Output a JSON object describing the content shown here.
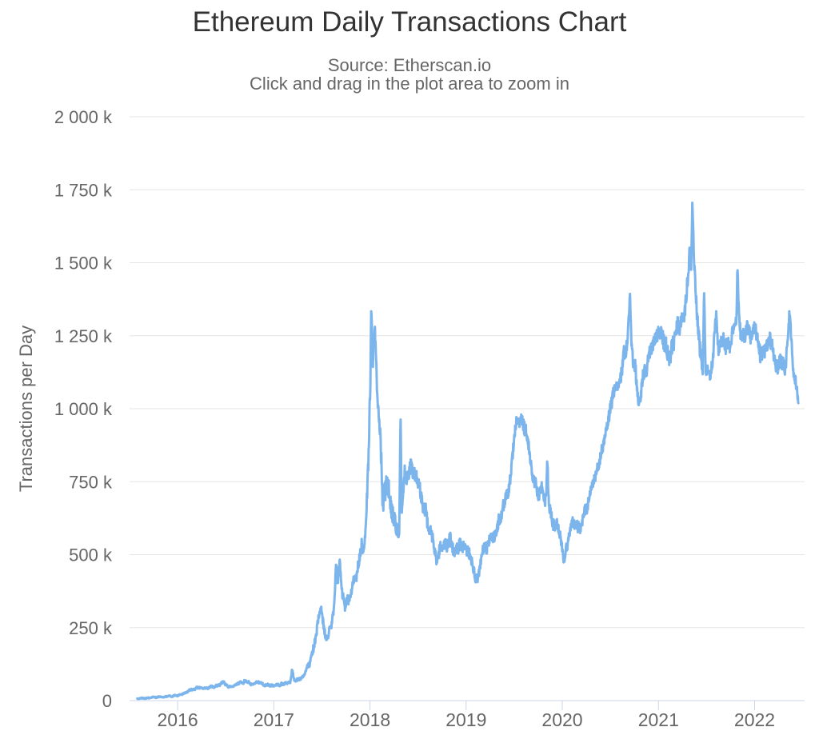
{
  "chart": {
    "title": "Ethereum Daily Transactions Chart",
    "subtitle_line1": "Source: Etherscan.io",
    "subtitle_line2": "Click and drag in the plot area to zoom in"
  },
  "style": {
    "line_color": "#7cb5ec",
    "grid_color": "#e6e6e6",
    "axis_color": "#ccd6eb",
    "title_color": "#333333",
    "label_color": "#666666",
    "background": "#ffffff"
  },
  "chart_data": {
    "type": "line",
    "title": "Ethereum Daily Transactions Chart",
    "subtitle": "Source: Etherscan.io — Click and drag in the plot area to zoom in",
    "xlabel": "",
    "ylabel": "Transactions per Day",
    "x_unit": "calendar year (decimal)",
    "y_unit": "thousand transactions per day",
    "xlim": [
      2015.5,
      2022.52
    ],
    "ylim": [
      0,
      2000
    ],
    "grid": "horizontal",
    "legend_position": "none",
    "x_ticks": [
      {
        "value": 2016,
        "label": "2016"
      },
      {
        "value": 2017,
        "label": "2017"
      },
      {
        "value": 2018,
        "label": "2018"
      },
      {
        "value": 2019,
        "label": "2019"
      },
      {
        "value": 2020,
        "label": "2020"
      },
      {
        "value": 2021,
        "label": "2021"
      },
      {
        "value": 2022,
        "label": "2022"
      }
    ],
    "y_ticks": [
      {
        "value": 0,
        "label": "0"
      },
      {
        "value": 250,
        "label": "250 k"
      },
      {
        "value": 500,
        "label": "500 k"
      },
      {
        "value": 750,
        "label": "750 k"
      },
      {
        "value": 1000,
        "label": "1 000 k"
      },
      {
        "value": 1250,
        "label": "1 250 k"
      },
      {
        "value": 1500,
        "label": "1 500 k"
      },
      {
        "value": 1750,
        "label": "1 750 k"
      },
      {
        "value": 2000,
        "label": "2 000 k"
      }
    ],
    "reconstruction": {
      "seed": 42,
      "sample_step_years": 0.003,
      "wander_step_years": 0.02,
      "wander_weight": 0.5,
      "jitter_weight": 0.5
    },
    "series": [
      {
        "name": "Transactions per Day",
        "color": "#7cb5ec",
        "points_note": "Anchor points [decimal_year, value_thousands, daily_noise_thousands] tracing the noisy daily series; notable extremes: ~1342k Jan 2018, ~988k Apr 2018, ~408k early 2019, ~1398k Sep 2020, ~1712k May 2021, ~1498k late 2021, ~1328k May 2022, ends ~1018k mid-2022",
        "anchors": [
          [
            2015.58,
            6,
            3
          ],
          [
            2015.7,
            10,
            4
          ],
          [
            2015.85,
            13,
            4
          ],
          [
            2016.0,
            18,
            5
          ],
          [
            2016.08,
            28,
            6
          ],
          [
            2016.17,
            42,
            7
          ],
          [
            2016.28,
            44,
            7
          ],
          [
            2016.4,
            50,
            8
          ],
          [
            2016.47,
            61,
            9
          ],
          [
            2016.53,
            49,
            8
          ],
          [
            2016.6,
            53,
            8
          ],
          [
            2016.7,
            66,
            9
          ],
          [
            2016.76,
            58,
            8
          ],
          [
            2016.83,
            65,
            8
          ],
          [
            2016.9,
            52,
            7
          ],
          [
            2017.0,
            52,
            7
          ],
          [
            2017.1,
            55,
            8
          ],
          [
            2017.17,
            62,
            9
          ],
          [
            2017.19,
            105,
            12
          ],
          [
            2017.215,
            66,
            9
          ],
          [
            2017.3,
            80,
            11
          ],
          [
            2017.37,
            120,
            18
          ],
          [
            2017.42,
            195,
            30
          ],
          [
            2017.455,
            265,
            35
          ],
          [
            2017.49,
            318,
            28
          ],
          [
            2017.52,
            240,
            28
          ],
          [
            2017.555,
            212,
            22
          ],
          [
            2017.59,
            248,
            26
          ],
          [
            2017.625,
            300,
            30
          ],
          [
            2017.648,
            480,
            28
          ],
          [
            2017.665,
            395,
            35
          ],
          [
            2017.687,
            483,
            28
          ],
          [
            2017.71,
            375,
            35
          ],
          [
            2017.74,
            325,
            32
          ],
          [
            2017.78,
            352,
            34
          ],
          [
            2017.82,
            392,
            36
          ],
          [
            2017.855,
            425,
            38
          ],
          [
            2017.885,
            468,
            40
          ],
          [
            2017.915,
            548,
            40
          ],
          [
            2017.94,
            505,
            36
          ],
          [
            2017.96,
            640,
            50
          ],
          [
            2017.985,
            860,
            65
          ],
          [
            2018.005,
            1090,
            60
          ],
          [
            2018.012,
            1342,
            35
          ],
          [
            2018.03,
            1145,
            55
          ],
          [
            2018.05,
            1258,
            45
          ],
          [
            2018.08,
            1022,
            55
          ],
          [
            2018.11,
            890,
            80
          ],
          [
            2018.13,
            700,
            90
          ],
          [
            2018.16,
            760,
            85
          ],
          [
            2018.2,
            700,
            70
          ],
          [
            2018.24,
            645,
            58
          ],
          [
            2018.28,
            605,
            50
          ],
          [
            2018.305,
            585,
            45
          ],
          [
            2018.318,
            988,
            18
          ],
          [
            2018.33,
            640,
            45
          ],
          [
            2018.36,
            758,
            50
          ],
          [
            2018.42,
            808,
            50
          ],
          [
            2018.47,
            782,
            50
          ],
          [
            2018.52,
            722,
            52
          ],
          [
            2018.57,
            645,
            50
          ],
          [
            2018.62,
            585,
            46
          ],
          [
            2018.66,
            540,
            44
          ],
          [
            2018.7,
            472,
            38
          ],
          [
            2018.73,
            545,
            42
          ],
          [
            2018.78,
            528,
            42
          ],
          [
            2018.83,
            562,
            42
          ],
          [
            2018.88,
            512,
            42
          ],
          [
            2018.93,
            545,
            42
          ],
          [
            2018.98,
            528,
            40
          ],
          [
            2019.03,
            495,
            40
          ],
          [
            2019.08,
            445,
            36
          ],
          [
            2019.12,
            408,
            28
          ],
          [
            2019.16,
            488,
            36
          ],
          [
            2019.21,
            532,
            40
          ],
          [
            2019.27,
            558,
            40
          ],
          [
            2019.33,
            588,
            42
          ],
          [
            2019.38,
            638,
            44
          ],
          [
            2019.42,
            702,
            46
          ],
          [
            2019.45,
            758,
            46
          ],
          [
            2019.49,
            868,
            48
          ],
          [
            2019.52,
            955,
            42
          ],
          [
            2019.55,
            932,
            45
          ],
          [
            2019.58,
            952,
            45
          ],
          [
            2019.62,
            908,
            48
          ],
          [
            2019.66,
            845,
            48
          ],
          [
            2019.7,
            758,
            45
          ],
          [
            2019.74,
            705,
            44
          ],
          [
            2019.78,
            715,
            44
          ],
          [
            2019.83,
            688,
            40
          ],
          [
            2019.845,
            818,
            26
          ],
          [
            2019.86,
            678,
            40
          ],
          [
            2019.9,
            625,
            40
          ],
          [
            2019.95,
            598,
            40
          ],
          [
            2019.99,
            528,
            36
          ],
          [
            2020.02,
            468,
            30
          ],
          [
            2020.06,
            558,
            38
          ],
          [
            2020.1,
            628,
            40
          ],
          [
            2020.14,
            608,
            40
          ],
          [
            2020.19,
            585,
            40
          ],
          [
            2020.24,
            648,
            40
          ],
          [
            2020.29,
            712,
            40
          ],
          [
            2020.34,
            762,
            40
          ],
          [
            2020.39,
            832,
            40
          ],
          [
            2020.44,
            908,
            42
          ],
          [
            2020.49,
            988,
            44
          ],
          [
            2020.54,
            1058,
            46
          ],
          [
            2020.59,
            1108,
            48
          ],
          [
            2020.64,
            1172,
            48
          ],
          [
            2020.68,
            1238,
            48
          ],
          [
            2020.705,
            1398,
            26
          ],
          [
            2020.72,
            1208,
            48
          ],
          [
            2020.76,
            1128,
            48
          ],
          [
            2020.8,
            1022,
            44
          ],
          [
            2020.84,
            1108,
            48
          ],
          [
            2020.88,
            1148,
            48
          ],
          [
            2020.93,
            1198,
            50
          ],
          [
            2020.98,
            1238,
            52
          ],
          [
            2021.03,
            1268,
            55
          ],
          [
            2021.08,
            1238,
            58
          ],
          [
            2021.12,
            1185,
            58
          ],
          [
            2021.17,
            1228,
            58
          ],
          [
            2021.22,
            1298,
            58
          ],
          [
            2021.27,
            1338,
            58
          ],
          [
            2021.31,
            1438,
            52
          ],
          [
            2021.325,
            1565,
            28
          ],
          [
            2021.34,
            1478,
            45
          ],
          [
            2021.353,
            1712,
            18
          ],
          [
            2021.37,
            1488,
            45
          ],
          [
            2021.4,
            1338,
            55
          ],
          [
            2021.43,
            1198,
            55
          ],
          [
            2021.46,
            1108,
            50
          ],
          [
            2021.475,
            1398,
            22
          ],
          [
            2021.49,
            1128,
            50
          ],
          [
            2021.53,
            1108,
            50
          ],
          [
            2021.57,
            1178,
            50
          ],
          [
            2021.6,
            1328,
            30
          ],
          [
            2021.62,
            1188,
            52
          ],
          [
            2021.66,
            1238,
            55
          ],
          [
            2021.7,
            1188,
            55
          ],
          [
            2021.74,
            1222,
            55
          ],
          [
            2021.78,
            1258,
            55
          ],
          [
            2021.81,
            1288,
            50
          ],
          [
            2021.822,
            1498,
            22
          ],
          [
            2021.84,
            1278,
            55
          ],
          [
            2021.88,
            1228,
            55
          ],
          [
            2021.92,
            1288,
            55
          ],
          [
            2021.96,
            1228,
            55
          ],
          [
            2022.0,
            1268,
            55
          ],
          [
            2022.04,
            1228,
            55
          ],
          [
            2022.08,
            1168,
            55
          ],
          [
            2022.12,
            1218,
            55
          ],
          [
            2022.16,
            1228,
            55
          ],
          [
            2022.2,
            1178,
            50
          ],
          [
            2022.24,
            1128,
            50
          ],
          [
            2022.28,
            1158,
            50
          ],
          [
            2022.32,
            1148,
            50
          ],
          [
            2022.365,
            1328,
            28
          ],
          [
            2022.4,
            1128,
            45
          ],
          [
            2022.43,
            1088,
            40
          ],
          [
            2022.455,
            1018,
            18
          ]
        ]
      }
    ]
  }
}
